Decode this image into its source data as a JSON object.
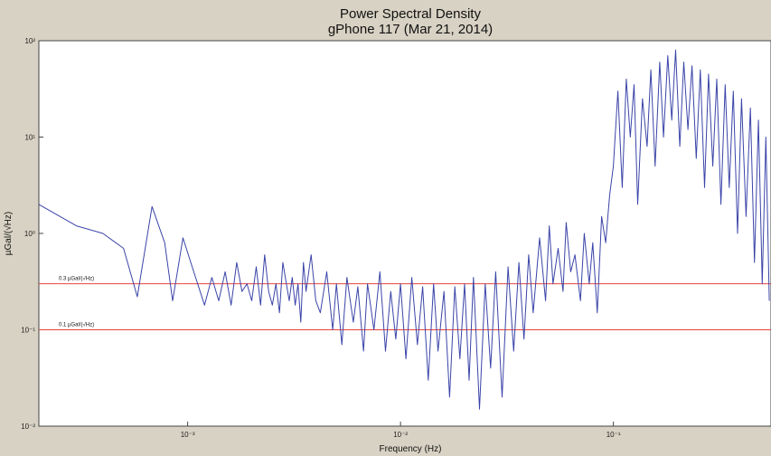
{
  "chart_data": {
    "type": "line",
    "title_line1": "Power Spectral Density",
    "title_line2": "gPhone 117 (Mar 21, 2014)",
    "xlabel": "Frequency (Hz)",
    "ylabel": "µGal/(√Hz)",
    "x_scale": "log",
    "y_scale": "log",
    "xlim": [
      0.0002,
      0.55
    ],
    "ylim": [
      0.01,
      100
    ],
    "x_ticks": [
      {
        "value": 0.001,
        "label": "10⁻³"
      },
      {
        "value": 0.01,
        "label": "10⁻²"
      },
      {
        "value": 0.1,
        "label": "10⁻¹"
      }
    ],
    "y_ticks": [
      {
        "value": 100,
        "label": "10²"
      },
      {
        "value": 10,
        "label": "10¹"
      },
      {
        "value": 1,
        "label": "10⁰"
      },
      {
        "value": 0.1,
        "label": "10⁻¹"
      },
      {
        "value": 0.01,
        "label": "10⁻²"
      }
    ],
    "reference_lines": [
      {
        "y": 0.3,
        "label": "0.3 µGal/(√Hz)",
        "color": "#e8443f"
      },
      {
        "y": 0.1,
        "label": "0.1 µGal/(√Hz)",
        "color": "#e8443f"
      }
    ],
    "series": [
      {
        "color": "#3a44a8",
        "x": [
          0.0002,
          0.0003,
          0.0004,
          0.0005,
          0.00058,
          0.00068,
          0.00078,
          0.00085,
          0.00095,
          0.00105,
          0.0012,
          0.0013,
          0.0014,
          0.0015,
          0.0016,
          0.0017,
          0.0018,
          0.0019,
          0.002,
          0.0021,
          0.0022,
          0.0023,
          0.0024,
          0.0025,
          0.0026,
          0.0027,
          0.0028,
          0.003,
          0.0031,
          0.0032,
          0.0033,
          0.0034,
          0.0035,
          0.0036,
          0.0038,
          0.004,
          0.0042,
          0.0045,
          0.0048,
          0.005,
          0.0053,
          0.0056,
          0.006,
          0.0063,
          0.0067,
          0.007,
          0.0075,
          0.008,
          0.0085,
          0.009,
          0.0095,
          0.01,
          0.0106,
          0.0113,
          0.012,
          0.0127,
          0.0135,
          0.0143,
          0.015,
          0.016,
          0.017,
          0.018,
          0.019,
          0.02,
          0.021,
          0.022,
          0.0235,
          0.025,
          0.0265,
          0.028,
          0.03,
          0.032,
          0.034,
          0.036,
          0.038,
          0.04,
          0.042,
          0.045,
          0.048,
          0.05,
          0.052,
          0.055,
          0.058,
          0.06,
          0.063,
          0.066,
          0.07,
          0.073,
          0.077,
          0.08,
          0.084,
          0.088,
          0.092,
          0.096,
          0.1,
          0.105,
          0.11,
          0.115,
          0.12,
          0.125,
          0.13,
          0.137,
          0.144,
          0.15,
          0.157,
          0.165,
          0.172,
          0.18,
          0.188,
          0.196,
          0.205,
          0.214,
          0.224,
          0.234,
          0.245,
          0.256,
          0.268,
          0.28,
          0.293,
          0.306,
          0.32,
          0.335,
          0.35,
          0.366,
          0.383,
          0.4,
          0.42,
          0.44,
          0.46,
          0.48,
          0.5,
          0.52,
          0.54
        ],
        "values": [
          2.0,
          1.2,
          1.0,
          0.7,
          0.22,
          1.9,
          0.8,
          0.2,
          0.9,
          0.45,
          0.18,
          0.35,
          0.2,
          0.4,
          0.18,
          0.5,
          0.25,
          0.3,
          0.2,
          0.45,
          0.18,
          0.6,
          0.25,
          0.18,
          0.3,
          0.15,
          0.5,
          0.2,
          0.35,
          0.18,
          0.3,
          0.12,
          0.5,
          0.25,
          0.6,
          0.2,
          0.15,
          0.4,
          0.1,
          0.3,
          0.07,
          0.35,
          0.12,
          0.28,
          0.06,
          0.3,
          0.1,
          0.4,
          0.06,
          0.25,
          0.08,
          0.3,
          0.05,
          0.35,
          0.07,
          0.28,
          0.03,
          0.3,
          0.06,
          0.25,
          0.02,
          0.28,
          0.05,
          0.3,
          0.03,
          0.35,
          0.015,
          0.3,
          0.04,
          0.4,
          0.02,
          0.45,
          0.06,
          0.5,
          0.08,
          0.6,
          0.15,
          0.9,
          0.2,
          1.2,
          0.3,
          0.7,
          0.25,
          1.3,
          0.4,
          0.6,
          0.2,
          1.0,
          0.3,
          0.8,
          0.15,
          1.5,
          0.8,
          2.5,
          5.0,
          30.0,
          3.0,
          40.0,
          10.0,
          35.0,
          2.0,
          25.0,
          8.0,
          50.0,
          5.0,
          60.0,
          10.0,
          70.0,
          15.0,
          80.0,
          8.0,
          60.0,
          12.0,
          55.0,
          6.0,
          50.0,
          3.0,
          45.0,
          5.0,
          40.0,
          2.0,
          35.0,
          3.0,
          30.0,
          1.0,
          25.0,
          1.5,
          20.0,
          0.5,
          15.0,
          0.3,
          10.0,
          0.2
        ]
      }
    ]
  }
}
